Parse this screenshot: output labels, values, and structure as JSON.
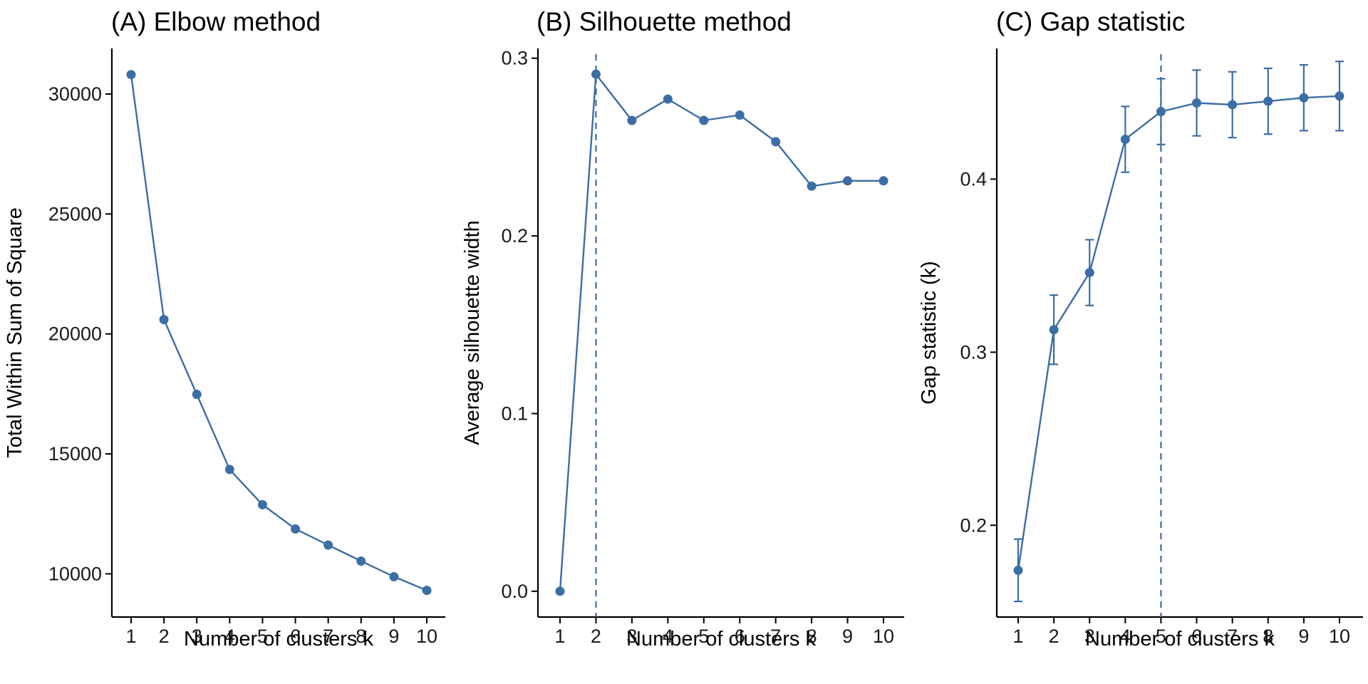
{
  "chart_data": [
    {
      "type": "line",
      "title": "(A) Elbow method",
      "xlabel": "Number of clusters k",
      "ylabel": "Total Within Sum of Square",
      "categories": [
        1,
        2,
        3,
        4,
        5,
        6,
        7,
        8,
        9,
        10
      ],
      "values": [
        30810,
        20600,
        17480,
        14350,
        12880,
        11870,
        11200,
        10530,
        9880,
        9310
      ],
      "ylim": [
        8200,
        31900
      ],
      "yticks": [
        10000,
        15000,
        20000,
        25000,
        30000
      ],
      "line_color": "#3B6EA5",
      "grid": false
    },
    {
      "type": "line",
      "title": "(B) Silhouette method",
      "xlabel": "Number of clusters k",
      "ylabel": "Average silhouette width",
      "categories": [
        1,
        2,
        3,
        4,
        5,
        6,
        7,
        8,
        9,
        10
      ],
      "values": [
        0.0,
        0.291,
        0.265,
        0.277,
        0.265,
        0.268,
        0.253,
        0.228,
        0.231,
        0.231
      ],
      "ylim": [
        -0.0145,
        0.3055
      ],
      "yticks": [
        0.0,
        0.1,
        0.2,
        0.3
      ],
      "ytick_labels": [
        "0.0",
        "0.1",
        "0.2",
        "0.3"
      ],
      "optimal_k": 2,
      "line_color": "#3B6EA5",
      "grid": false
    },
    {
      "type": "line",
      "title": "(C) Gap statistic",
      "xlabel": "Number of clusters k",
      "ylabel": "Gap statistic (k)",
      "categories": [
        1,
        2,
        3,
        4,
        5,
        6,
        7,
        8,
        9,
        10
      ],
      "values": [
        0.174,
        0.313,
        0.346,
        0.423,
        0.439,
        0.444,
        0.443,
        0.445,
        0.447,
        0.448
      ],
      "errors": [
        0.018,
        0.02,
        0.019,
        0.019,
        0.019,
        0.019,
        0.019,
        0.019,
        0.019,
        0.02
      ],
      "ylim": [
        0.147,
        0.4755
      ],
      "yticks": [
        0.2,
        0.3,
        0.4
      ],
      "ytick_labels": [
        "0.2",
        "0.3",
        "0.4"
      ],
      "optimal_k": 5,
      "line_color": "#3B6EA5",
      "grid": false
    }
  ]
}
